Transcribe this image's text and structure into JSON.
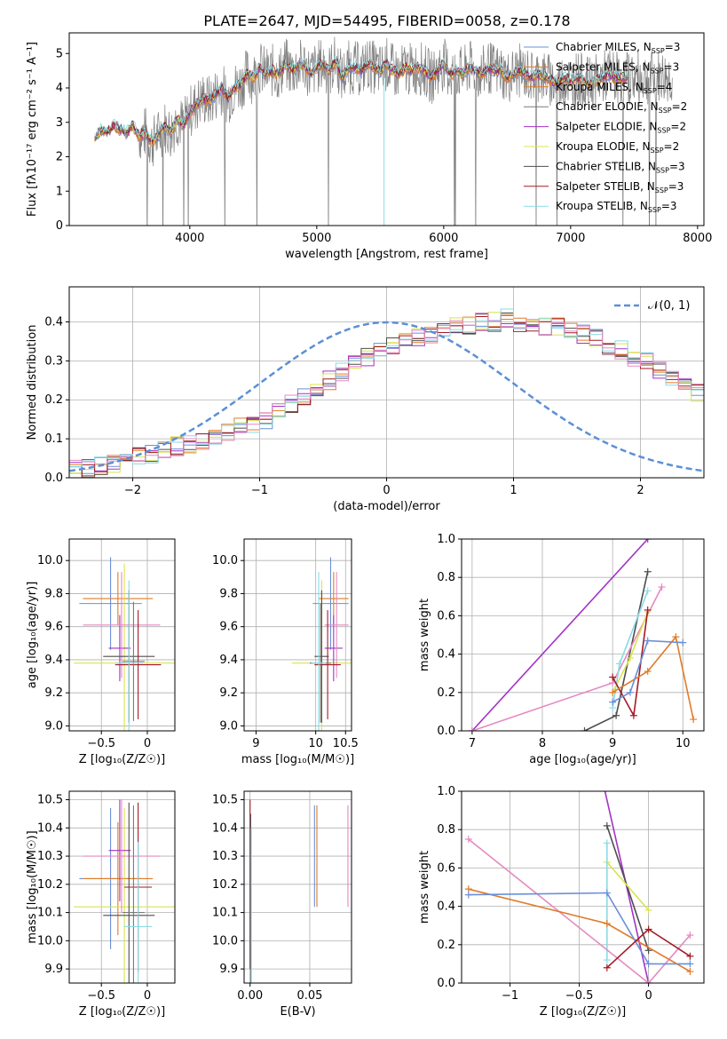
{
  "title": "PLATE=2647, MJD=54495, FIBERID=0058, z=0.178",
  "colors": [
    "#6b8fd8",
    "#e07b28",
    "#7a7a7a",
    "#a233c6",
    "#d8e44f",
    "#4d4d4d",
    "#a31a26",
    "#89dbe4",
    "#e58ac0",
    "#3a6fbf"
  ],
  "models": [
    {
      "name": "Chabrier MILES",
      "nssp": "3",
      "color": "#6b8fd8"
    },
    {
      "name": "Salpeter MILES",
      "nssp": "3",
      "color": "#e07b28"
    },
    {
      "name": "Kroupa MILES",
      "nssp": "4",
      "color": "#e07b28"
    },
    {
      "name": "Chabrier ELODIE",
      "nssp": "2",
      "color": "#7a7a7a"
    },
    {
      "name": "Salpeter ELODIE",
      "nssp": "2",
      "color": "#a233c6"
    },
    {
      "name": "Kroupa ELODIE",
      "nssp": "2",
      "color": "#d8e44f"
    },
    {
      "name": "Chabrier STELIB",
      "nssp": "3",
      "color": "#4d4d4d"
    },
    {
      "name": "Salpeter STELIB",
      "nssp": "3",
      "color": "#a31a26"
    },
    {
      "name": "Kroupa STELIB",
      "nssp": "3",
      "color": "#89dbe4"
    }
  ],
  "nssp_prefix": "N",
  "nssp_sub": "SSP",
  "chart_data": [
    {
      "id": "spectrum",
      "type": "line",
      "xlabel": "wavelength [Angstrom, rest frame]",
      "ylabel": "Flux [fλ10⁻¹⁷ erg cm⁻² s⁻¹ A⁻¹]",
      "xlim": [
        3050,
        8050
      ],
      "ylim": [
        0,
        5.6
      ],
      "xticks": [
        4000,
        5000,
        6000,
        7000,
        8000
      ],
      "yticks": [
        0,
        1,
        2,
        3,
        4,
        5
      ],
      "legend": "upper right",
      "data_series": {
        "name": "",
        "x_range": [
          3600,
          7800
        ],
        "color": "#808080"
      },
      "model_x": [
        3250,
        3300,
        3350,
        3400,
        3450,
        3500,
        3550,
        3600,
        3650,
        3700,
        3750,
        3800,
        3850,
        3900,
        3950,
        4000,
        4050,
        4100,
        4150,
        4200,
        4250,
        4300,
        4350,
        4400,
        4450,
        4500,
        4550,
        4600,
        4650,
        4700,
        4750,
        4800,
        4850,
        4900,
        4950,
        5000,
        5050,
        5100,
        5150,
        5200,
        5250,
        5300,
        5350,
        5400,
        5450,
        5500,
        5550,
        5600,
        5650,
        5700,
        5750,
        5800,
        5850,
        5900,
        5950,
        6000,
        6050,
        6100,
        6150,
        6200,
        6250,
        6300,
        6350,
        6400,
        6450,
        6500,
        6550,
        6600,
        6650,
        6700,
        6750,
        6800,
        6850,
        6900,
        6950,
        7000,
        7050,
        7100,
        7150,
        7200,
        7250,
        7300,
        7350,
        7400
      ],
      "model_y": [
        2.5,
        2.8,
        2.7,
        2.9,
        2.8,
        2.7,
        2.9,
        2.6,
        2.7,
        2.4,
        2.6,
        2.9,
        2.7,
        3.1,
        2.9,
        3.3,
        3.5,
        3.7,
        3.6,
        3.8,
        4.0,
        3.7,
        4.0,
        4.1,
        4.4,
        4.3,
        4.6,
        4.4,
        4.5,
        4.4,
        4.7,
        4.5,
        4.6,
        4.7,
        4.4,
        4.6,
        4.7,
        4.5,
        4.8,
        4.3,
        4.6,
        4.6,
        4.5,
        4.7,
        4.6,
        4.5,
        4.7,
        4.5,
        4.4,
        4.6,
        4.5,
        4.6,
        4.5,
        4.3,
        4.5,
        4.7,
        4.4,
        4.5,
        4.4,
        4.6,
        4.5,
        4.4,
        4.6,
        4.5,
        4.5,
        4.3,
        4.4,
        4.5,
        4.4,
        4.3,
        4.4,
        4.3,
        4.2,
        4.1,
        4.3,
        4.2,
        4.3,
        4.2,
        4.1,
        4.2,
        4.3,
        4.4,
        4.3,
        4.3
      ]
    },
    {
      "id": "residuals",
      "type": "step",
      "xlabel": "(data-model)/error",
      "ylabel": "Normed distribution",
      "xlim": [
        -2.5,
        2.5
      ],
      "ylim": [
        0,
        0.49
      ],
      "xticks": [
        -2,
        -1,
        0,
        1,
        2
      ],
      "yticks": [
        0.0,
        0.1,
        0.2,
        0.3,
        0.4
      ],
      "bin_width": 0.1,
      "bin_start": -2.5,
      "hist": [
        0.02,
        0.025,
        0.03,
        0.035,
        0.04,
        0.055,
        0.06,
        0.07,
        0.08,
        0.085,
        0.09,
        0.1,
        0.115,
        0.13,
        0.14,
        0.15,
        0.17,
        0.19,
        0.21,
        0.23,
        0.25,
        0.27,
        0.29,
        0.31,
        0.33,
        0.34,
        0.35,
        0.36,
        0.37,
        0.38,
        0.39,
        0.39,
        0.4,
        0.4,
        0.41,
        0.4,
        0.4,
        0.39,
        0.39,
        0.38,
        0.37,
        0.36,
        0.34,
        0.33,
        0.31,
        0.3,
        0.28,
        0.26,
        0.24,
        0.22
      ],
      "gauss_label": "𝒩(0, 1)",
      "gauss_color": "#5b8fd8",
      "legend": "upper right"
    },
    {
      "id": "z-age",
      "type": "errorbar",
      "xlabel": "Z [log₁₀(Z/Z☉)]",
      "ylabel": "age  [log₁₀(age/yr)]",
      "xlim": [
        -0.85,
        0.3
      ],
      "ylim": [
        8.97,
        10.13
      ],
      "xticks": [
        -0.5,
        0.0
      ],
      "yticks": [
        9.0,
        9.2,
        9.4,
        9.6,
        9.8,
        10.0
      ],
      "points": [
        {
          "x": -0.4,
          "y": 9.74,
          "xe": 0.34,
          "ye": 0.28,
          "c": "#6b8fd8"
        },
        {
          "x": -0.32,
          "y": 9.77,
          "xe": 0.38,
          "ye": 0.16,
          "c": "#e07b28"
        },
        {
          "x": -0.25,
          "y": 9.38,
          "xe": 0.55,
          "ye": 0.6,
          "c": "#d8e44f"
        },
        {
          "x": -0.3,
          "y": 9.47,
          "xe": 0.12,
          "ye": 0.2,
          "c": "#a233c6"
        },
        {
          "x": -0.28,
          "y": 9.61,
          "xe": 0.42,
          "ye": 0.32,
          "c": "#e58ac0"
        },
        {
          "x": -0.2,
          "y": 9.42,
          "xe": 0.28,
          "ye": 0.4,
          "c": "#4d4d4d"
        },
        {
          "x": -0.1,
          "y": 9.37,
          "xe": 0.25,
          "ye": 0.33,
          "c": "#a31a26"
        },
        {
          "x": -0.15,
          "y": 9.39,
          "xe": 0.12,
          "ye": 0.36,
          "c": "#7a7a7a"
        },
        {
          "x": -0.2,
          "y": 9.38,
          "xe": 0.15,
          "ye": 0.5,
          "c": "#89dbe4"
        }
      ]
    },
    {
      "id": "mass-age",
      "type": "errorbar",
      "xlabel": "mass [log₁₀(M/M☉)]",
      "ylabel": "",
      "xlim": [
        8.8,
        10.6
      ],
      "ylim": [
        8.97,
        10.13
      ],
      "xticks": [
        9,
        10,
        10.5
      ],
      "xtick_labels": [
        "9",
        "10",
        "10.5"
      ],
      "yticks": [
        9.0,
        9.2,
        9.4,
        9.6,
        9.8,
        10.0
      ],
      "points": [
        {
          "x": 10.25,
          "y": 9.74,
          "xe": 0.3,
          "ye": 0.28,
          "c": "#6b8fd8"
        },
        {
          "x": 10.3,
          "y": 9.77,
          "xe": 0.25,
          "ye": 0.16,
          "c": "#e07b28"
        },
        {
          "x": 10.1,
          "y": 9.38,
          "xe": 0.5,
          "ye": 0.5,
          "c": "#d8e44f"
        },
        {
          "x": 10.3,
          "y": 9.47,
          "xe": 0.15,
          "ye": 0.2,
          "c": "#a233c6"
        },
        {
          "x": 10.35,
          "y": 9.61,
          "xe": 0.2,
          "ye": 0.32,
          "c": "#e58ac0"
        },
        {
          "x": 10.1,
          "y": 9.42,
          "xe": 0.12,
          "ye": 0.4,
          "c": "#4d4d4d"
        },
        {
          "x": 10.2,
          "y": 9.37,
          "xe": 0.22,
          "ye": 0.33,
          "c": "#a31a26"
        },
        {
          "x": 10.08,
          "y": 9.38,
          "xe": 0.18,
          "ye": 0.36,
          "c": "#7a7a7a"
        },
        {
          "x": 10.05,
          "y": 9.38,
          "xe": 0.12,
          "ye": 0.55,
          "c": "#89dbe4"
        }
      ]
    },
    {
      "id": "weight-age",
      "type": "line",
      "xlabel": "age  [log₁₀(age/yr)]",
      "ylabel": "mass weight",
      "xlim": [
        6.85,
        10.3
      ],
      "ylim": [
        0,
        1
      ],
      "xticks": [
        7,
        8,
        9,
        10
      ],
      "yticks": [
        0.0,
        0.2,
        0.4,
        0.6,
        0.8,
        1.0
      ],
      "series": [
        {
          "c": "#a233c6",
          "x": [
            7,
            9.5
          ],
          "y": [
            0,
            1
          ]
        },
        {
          "c": "#4d4d4d",
          "x": [
            8.6,
            9.05,
            9.5
          ],
          "y": [
            0,
            0.08,
            0.83
          ]
        },
        {
          "c": "#e58ac0",
          "x": [
            7,
            9,
            9.7
          ],
          "y": [
            0,
            0.25,
            0.75
          ]
        },
        {
          "c": "#89dbe4",
          "x": [
            9,
            9.1,
            9.5
          ],
          "y": [
            0.12,
            0.35,
            0.73
          ]
        },
        {
          "c": "#d8e44f",
          "x": [
            9,
            9.25,
            9.5
          ],
          "y": [
            0.2,
            0.38,
            0.62
          ]
        },
        {
          "c": "#a31a26",
          "x": [
            9,
            9.3,
            9.5
          ],
          "y": [
            0.28,
            0.08,
            0.63
          ]
        },
        {
          "c": "#e07b28",
          "x": [
            9,
            9.5,
            9.9,
            10.15
          ],
          "y": [
            0.2,
            0.31,
            0.49,
            0.06
          ]
        },
        {
          "c": "#6b8fd8",
          "x": [
            9,
            9.25,
            9.5,
            10
          ],
          "y": [
            0.15,
            0.2,
            0.47,
            0.46
          ]
        }
      ]
    },
    {
      "id": "z-mass",
      "type": "errorbar",
      "xlabel": "Z [log₁₀(Z/Z☉)]",
      "ylabel": "mass [log₁₀(M/M☉)]",
      "xlim": [
        -0.85,
        0.3
      ],
      "ylim": [
        9.85,
        10.53
      ],
      "xticks": [
        -0.5,
        0.0
      ],
      "yticks": [
        9.9,
        10.0,
        10.1,
        10.2,
        10.3,
        10.4,
        10.5
      ],
      "points": [
        {
          "x": -0.4,
          "y": 10.22,
          "xe": 0.34,
          "ye": 0.25,
          "c": "#6b8fd8"
        },
        {
          "x": -0.32,
          "y": 10.22,
          "xe": 0.38,
          "ye": 0.2,
          "c": "#e07b28"
        },
        {
          "x": -0.25,
          "y": 10.12,
          "xe": 0.55,
          "ye": 0.35,
          "c": "#d8e44f"
        },
        {
          "x": -0.3,
          "y": 10.32,
          "xe": 0.12,
          "ye": 0.18,
          "c": "#a233c6"
        },
        {
          "x": -0.28,
          "y": 10.3,
          "xe": 0.42,
          "ye": 0.2,
          "c": "#e58ac0"
        },
        {
          "x": -0.2,
          "y": 10.09,
          "xe": 0.28,
          "ye": 0.4,
          "c": "#4d4d4d"
        },
        {
          "x": -0.1,
          "y": 10.19,
          "xe": 0.15,
          "ye": 0.3,
          "c": "#a31a26"
        },
        {
          "x": -0.15,
          "y": 10.1,
          "xe": 0.12,
          "ye": 0.38,
          "c": "#7a7a7a"
        },
        {
          "x": -0.1,
          "y": 10.05,
          "xe": 0.15,
          "ye": 0.3,
          "c": "#89dbe4"
        }
      ]
    },
    {
      "id": "ebv-mass",
      "type": "errorbar",
      "xlabel": "E(B-V)",
      "ylabel": "",
      "xlim": [
        -0.005,
        0.085
      ],
      "ylim": [
        9.85,
        10.53
      ],
      "xticks": [
        0.0,
        0.05
      ],
      "xtick_labels": [
        "0.00",
        "0.05"
      ],
      "yticks": [
        9.9,
        10.0,
        10.1,
        10.2,
        10.3,
        10.4,
        10.5
      ],
      "points": [
        {
          "x": 0.054,
          "y": 10.3,
          "xe": 0,
          "ye": 0.18,
          "c": "#6b8fd8"
        },
        {
          "x": 0.056,
          "y": 10.3,
          "xe": 0,
          "ye": 0.18,
          "c": "#e07b28"
        },
        {
          "x": 0.082,
          "y": 10.3,
          "xe": 0,
          "ye": 0.18,
          "c": "#e58ac0"
        },
        {
          "x": 0.0,
          "y": 10.2,
          "xe": 0,
          "ye": 0.3,
          "c": "#a31a26"
        },
        {
          "x": 0.0005,
          "y": 10.15,
          "xe": 0,
          "ye": 0.3,
          "c": "#4d4d4d"
        },
        {
          "x": 0.001,
          "y": 10.1,
          "xe": 0,
          "ye": 0.3,
          "c": "#89dbe4"
        }
      ]
    },
    {
      "id": "weight-z",
      "type": "line",
      "xlabel": "Z [log₁₀(Z/Z☉)]",
      "ylabel": "mass weight",
      "xlim": [
        -1.35,
        0.4
      ],
      "ylim": [
        0,
        1
      ],
      "xticks": [
        -1.0,
        -0.5,
        0.0
      ],
      "yticks": [
        0.0,
        0.2,
        0.4,
        0.6,
        0.8,
        1.0
      ],
      "series": [
        {
          "c": "#a233c6",
          "x": [
            -0.33,
            0
          ],
          "y": [
            1.05,
            0
          ]
        },
        {
          "c": "#4d4d4d",
          "x": [
            -0.3,
            0
          ],
          "y": [
            0.82,
            0.17
          ]
        },
        {
          "c": "#d8e44f",
          "x": [
            -0.3,
            0
          ],
          "y": [
            0.63,
            0.38
          ]
        },
        {
          "c": "#89dbe4",
          "x": [
            -0.3,
            -0.3
          ],
          "y": [
            0.73,
            0.12
          ]
        },
        {
          "c": "#e58ac0",
          "x": [
            -1.3,
            0,
            0.3
          ],
          "y": [
            0.75,
            0,
            0.25
          ]
        },
        {
          "c": "#e07b28",
          "x": [
            -1.3,
            -0.3,
            0.3
          ],
          "y": [
            0.49,
            0.31,
            0.06
          ]
        },
        {
          "c": "#6b8fd8",
          "x": [
            -1.3,
            -0.3,
            0,
            0.3
          ],
          "y": [
            0.46,
            0.47,
            0.1,
            0.1
          ]
        },
        {
          "c": "#a31a26",
          "x": [
            -0.3,
            0,
            0.3
          ],
          "y": [
            0.08,
            0.28,
            0.14
          ]
        }
      ]
    }
  ]
}
